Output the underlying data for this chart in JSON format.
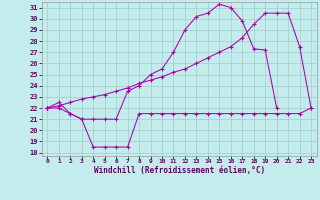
{
  "xlabel": "Windchill (Refroidissement éolien,°C)",
  "bg_color": "#c4ecec",
  "grid_color": "#a0cccc",
  "line_color": "#aa00aa",
  "xlim_min": -0.5,
  "xlim_max": 23.5,
  "ylim_min": 17.7,
  "ylim_max": 31.5,
  "yticks": [
    18,
    19,
    20,
    21,
    22,
    23,
    24,
    25,
    26,
    27,
    28,
    29,
    30,
    31
  ],
  "xticks": [
    0,
    1,
    2,
    3,
    4,
    5,
    6,
    7,
    8,
    9,
    10,
    11,
    12,
    13,
    14,
    15,
    16,
    17,
    18,
    19,
    20,
    21,
    22,
    23
  ],
  "line1_x": [
    0,
    1,
    2,
    3,
    4,
    5,
    6,
    7,
    8,
    9,
    10,
    11,
    12,
    13,
    14,
    15,
    16,
    17,
    18,
    19,
    20,
    21,
    22,
    23
  ],
  "line1_y": [
    22.0,
    22.0,
    21.5,
    21.0,
    18.5,
    18.5,
    18.5,
    18.5,
    21.5,
    21.5,
    21.5,
    21.5,
    21.5,
    21.5,
    21.5,
    21.5,
    21.5,
    21.5,
    21.5,
    21.5,
    21.5,
    21.5,
    21.5,
    22.0
  ],
  "line2_x": [
    0,
    1,
    2,
    3,
    4,
    5,
    6,
    7,
    8,
    9,
    10,
    11,
    12,
    13,
    14,
    15,
    16,
    17,
    18,
    19,
    20,
    21,
    22
  ],
  "line2_y": [
    22.0,
    22.5,
    21.5,
    21.0,
    21.0,
    21.0,
    21.0,
    23.5,
    24.0,
    25.0,
    25.5,
    27.0,
    29.0,
    30.2,
    30.5,
    31.3,
    31.0,
    29.8,
    27.3,
    27.2,
    22.0,
    null,
    null
  ],
  "line3_x": [
    0,
    1,
    2,
    3,
    4,
    5,
    6,
    7,
    8,
    9,
    10,
    11,
    12,
    13,
    14,
    15,
    16,
    17,
    18,
    19,
    20,
    21,
    22,
    23
  ],
  "line3_y": [
    22.0,
    22.2,
    22.5,
    22.8,
    23.0,
    23.2,
    23.5,
    23.8,
    24.2,
    24.5,
    24.8,
    25.2,
    25.5,
    26.0,
    26.5,
    27.0,
    27.5,
    28.3,
    29.5,
    30.5,
    30.5,
    30.5,
    27.5,
    22.0
  ]
}
